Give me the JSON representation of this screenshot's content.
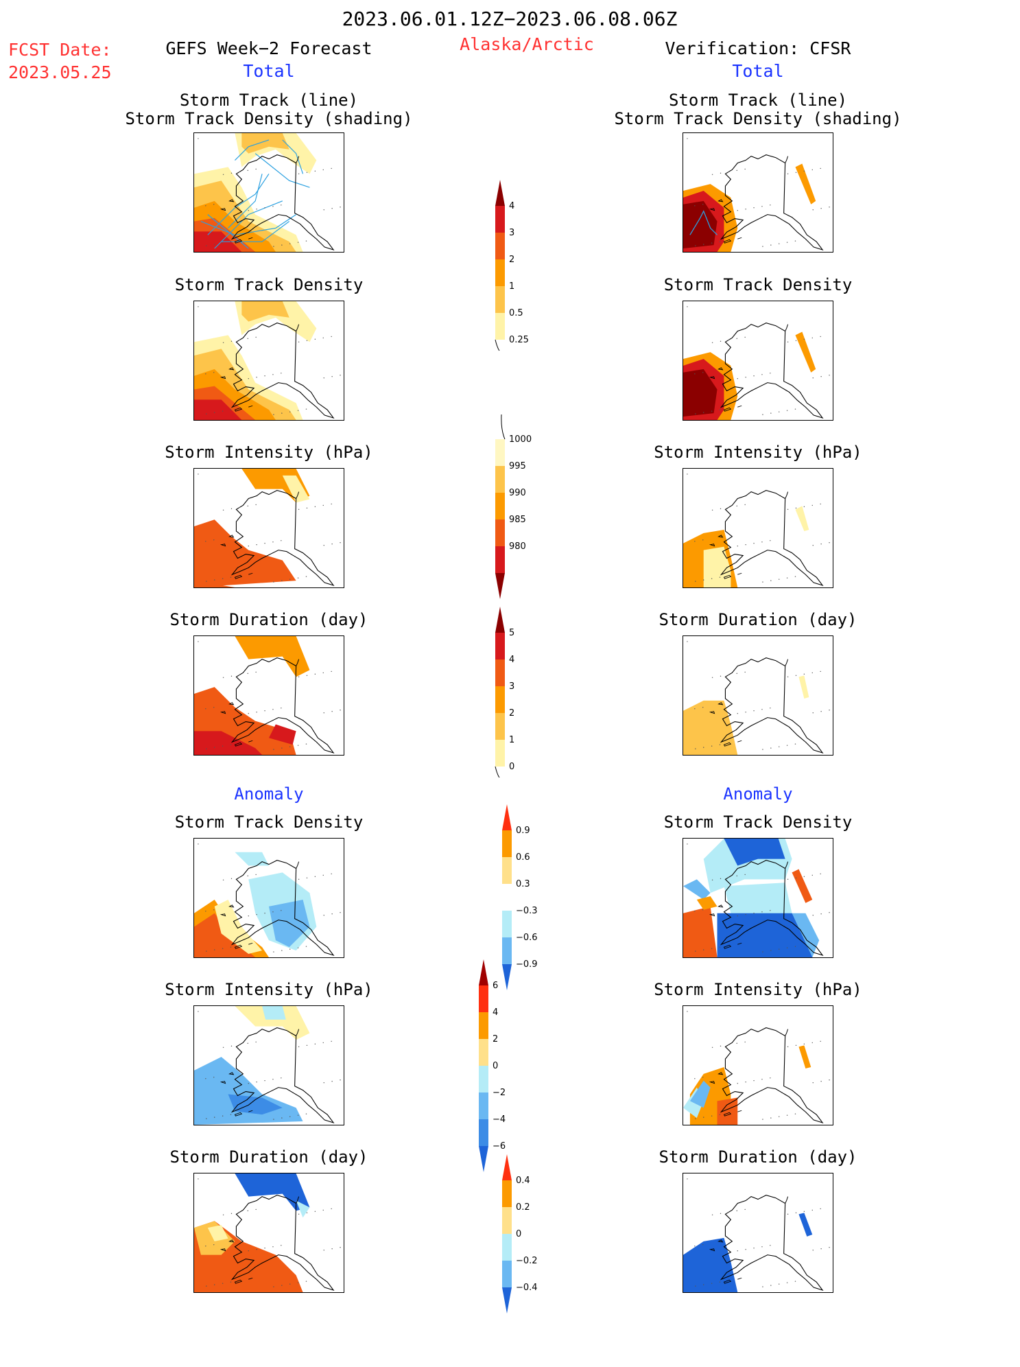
{
  "header": {
    "period": "2023.06.01.12Z−2023.06.08.06Z",
    "fcst_label": "FCST Date:",
    "fcst_date": "2023.05.25",
    "left_title": "GEFS Week−2 Forecast",
    "region": "Alaska/Arctic",
    "right_title": "Verification: CFSR",
    "left_subtitle": "Total",
    "right_subtitle": "Total"
  },
  "sections": {
    "total": "Total",
    "anomaly_left": "Anomaly",
    "anomaly_right": "Anomaly"
  },
  "panels": {
    "p1_line1": "Storm Track (line)",
    "p1_line2": "Storm Track Density (shading)",
    "p2": "Storm Track Density",
    "p3": "Storm Intensity (hPa)",
    "p4": "Storm Duration (day)",
    "p5": "Storm Track Density",
    "p6": "Storm Intensity (hPa)",
    "p7": "Storm Duration (day)"
  },
  "colorbars": {
    "density_total": {
      "levels": [
        "4",
        "3",
        "2",
        "1",
        "0.5",
        "0.25"
      ],
      "colors": [
        "#8b0000",
        "#d7191c",
        "#f05a14",
        "#fc9a00",
        "#fdc44a",
        "#fff3a8"
      ]
    },
    "intensity_total": {
      "levels": [
        "1000",
        "995",
        "990",
        "985",
        "980"
      ],
      "colors": [
        "#fff7c2",
        "#fdc44a",
        "#fc9a00",
        "#f05a14",
        "#d7191c",
        "#8b0000"
      ]
    },
    "duration_total": {
      "levels": [
        "5",
        "4",
        "3",
        "2",
        "1",
        "0"
      ],
      "colors": [
        "#8b0000",
        "#d7191c",
        "#f05a14",
        "#fc9a00",
        "#fdc44a",
        "#fff3a8"
      ]
    },
    "density_anom": {
      "levels": [
        "0.9",
        "0.6",
        "0.3",
        "−0.3",
        "−0.6",
        "−0.9"
      ],
      "colors": [
        "#ff3010",
        "#fc9a00",
        "#ffe08a",
        "#ffffff",
        "#b4ecf7",
        "#6ab8f2",
        "#1e64d8"
      ]
    },
    "intensity_anom": {
      "levels": [
        "6",
        "4",
        "2",
        "0",
        "−2",
        "−4",
        "−6"
      ],
      "colors": [
        "#a00000",
        "#ff3010",
        "#fc9a00",
        "#ffe08a",
        "#b4ecf7",
        "#6ab8f2",
        "#3c8ce6",
        "#1e64d8"
      ]
    },
    "duration_anom": {
      "levels": [
        "0.4",
        "0.2",
        "0",
        "−0.2",
        "−0.4"
      ],
      "colors": [
        "#ff3010",
        "#fc9a00",
        "#ffe08a",
        "#b4ecf7",
        "#6ab8f2",
        "#1e64d8"
      ]
    }
  },
  "palette": {
    "dark_red": "#8b0000",
    "red": "#d7191c",
    "red_orange": "#f05a14",
    "orange": "#fc9a00",
    "light_orange": "#fdc44a",
    "pale_yellow": "#fff3a8",
    "light_blue": "#b4ecf7",
    "mid_blue": "#6ab8f2",
    "blue": "#3c8ce6",
    "dark_blue": "#1e64d8",
    "track_line": "#2aa0e0"
  }
}
